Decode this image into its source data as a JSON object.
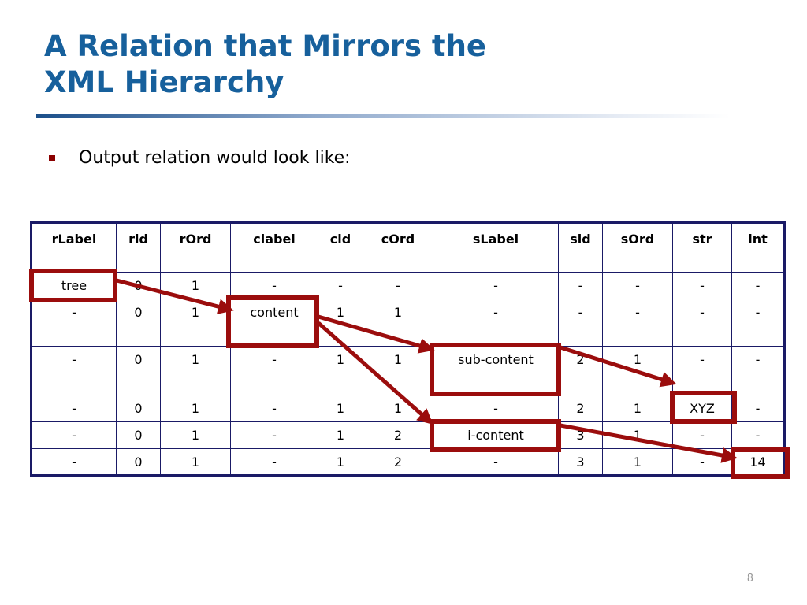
{
  "slide": {
    "title_line1": "A Relation that Mirrors the",
    "title_line2": "XML Hierarchy",
    "bullet": "Output relation would look like:",
    "page_number": "8"
  },
  "table": {
    "columns": [
      "rLabel",
      "rid",
      "rOrd",
      "clabel",
      "cid",
      "cOrd",
      "sLabel",
      "sid",
      "sOrd",
      "str",
      "int"
    ],
    "rows": [
      [
        "tree",
        "0",
        "1",
        "-",
        "-",
        "-",
        "-",
        "-",
        "-",
        "-",
        "-"
      ],
      [
        "-",
        "0",
        "1",
        "content",
        "1",
        "1",
        "-",
        "-",
        "-",
        "-",
        "-"
      ],
      [
        "-",
        "0",
        "1",
        "-",
        "1",
        "1",
        "sub-content",
        "2",
        "1",
        "-",
        "-"
      ],
      [
        "-",
        "0",
        "1",
        "-",
        "1",
        "1",
        "-",
        "2",
        "1",
        "XYZ",
        "-"
      ],
      [
        "-",
        "0",
        "1",
        "-",
        "1",
        "2",
        "i-content",
        "3",
        "1",
        "-",
        "-"
      ],
      [
        "-",
        "0",
        "1",
        "-",
        "1",
        "2",
        "-",
        "3",
        "1",
        "-",
        "14"
      ]
    ]
  },
  "annotation_color": "#9b0d0d"
}
